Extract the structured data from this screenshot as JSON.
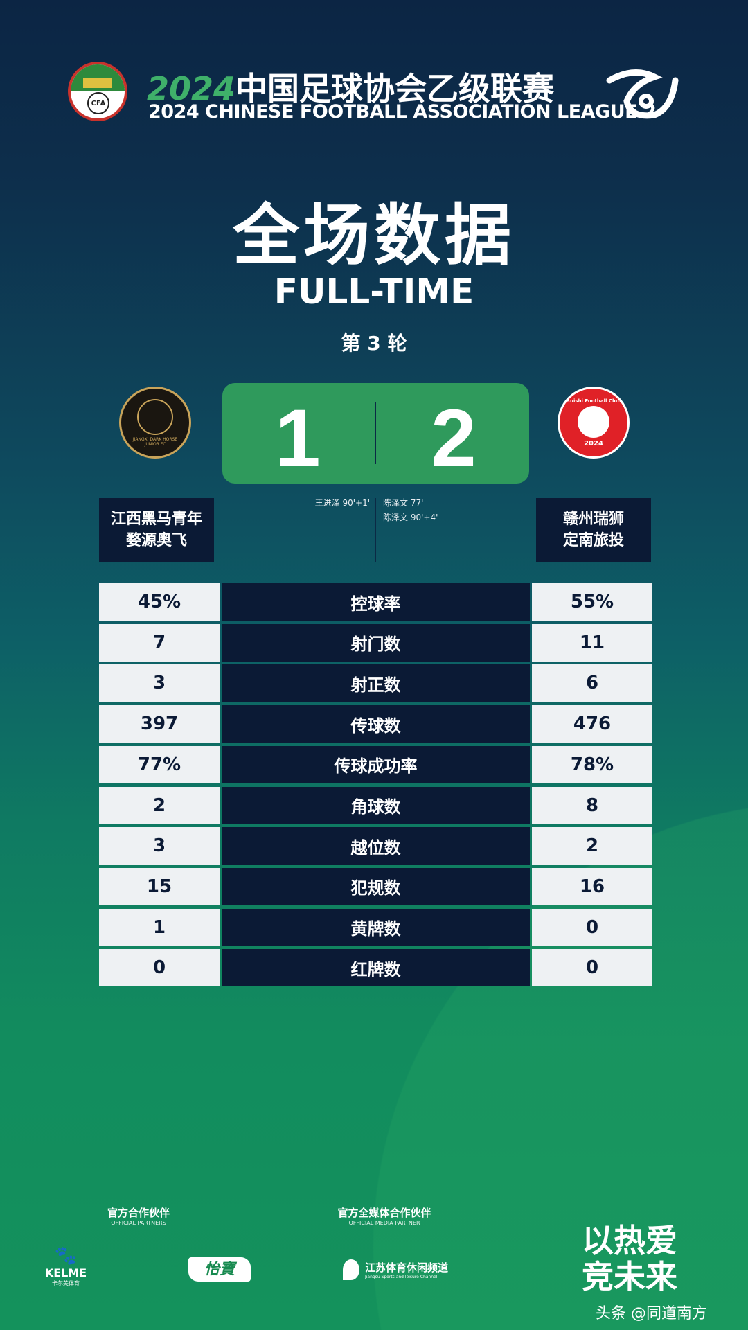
{
  "header": {
    "title_cn_year": "2024",
    "title_cn": "中国足球协会乙级联赛",
    "title_en": "2024 CHINESE FOOTBALL ASSOCIATION LEAGUE 2",
    "cfa_logo_text": "CFA"
  },
  "title_cn": "全场数据",
  "title_en": "FULL-TIME",
  "round": "第 3 轮",
  "colors": {
    "score_box": "#2f9a5c",
    "dark_cell": "#0b1a35",
    "light_cell": "#eef1f3",
    "home_logo": "#1a1610",
    "away_logo": "#e02127"
  },
  "match": {
    "home_score": "1",
    "away_score": "2",
    "home_team": [
      "江西黑马青年",
      "婺源奥飞"
    ],
    "away_team": [
      "赣州瑞狮",
      "定南旅投"
    ],
    "home_scorers": [
      "王进泽 90'+1'"
    ],
    "away_scorers": [
      "陈泽文 77'",
      "陈泽文 90'+4'"
    ],
    "home_logo_text": "JIANGXI DARK HORSE JUNIOR FC",
    "away_logo_text": "Ruishi Football Club",
    "away_logo_year": "2024"
  },
  "stats": [
    {
      "label": "控球率",
      "home": "45%",
      "away": "55%"
    },
    {
      "label": "射门数",
      "home": "7",
      "away": "11"
    },
    {
      "label": "射正数",
      "home": "3",
      "away": "6"
    },
    {
      "label": "传球数",
      "home": "397",
      "away": "476"
    },
    {
      "label": "传球成功率",
      "home": "77%",
      "away": "78%"
    },
    {
      "label": "角球数",
      "home": "2",
      "away": "8"
    },
    {
      "label": "越位数",
      "home": "3",
      "away": "2"
    },
    {
      "label": "犯规数",
      "home": "15",
      "away": "16"
    },
    {
      "label": "黄牌数",
      "home": "1",
      "away": "0"
    },
    {
      "label": "红牌数",
      "home": "0",
      "away": "0"
    }
  ],
  "footer": {
    "partners_cn": "官方合作伙伴",
    "partners_en": "OFFICIAL PARTNERS",
    "media_cn": "官方全媒体合作伙伴",
    "media_en": "OFFICIAL MEDIA PARTNER",
    "kelme": "KELME",
    "kelme_cn": "卡尔美体育",
    "yibao": "怡寶",
    "jiangsu_cn": "江苏体育休闲频道",
    "jiangsu_en": "Jiangsu Sports and leisure Channel",
    "slogan1": "以热爱",
    "slogan2": "竞未来",
    "watermark": "头条 @同道南方"
  }
}
